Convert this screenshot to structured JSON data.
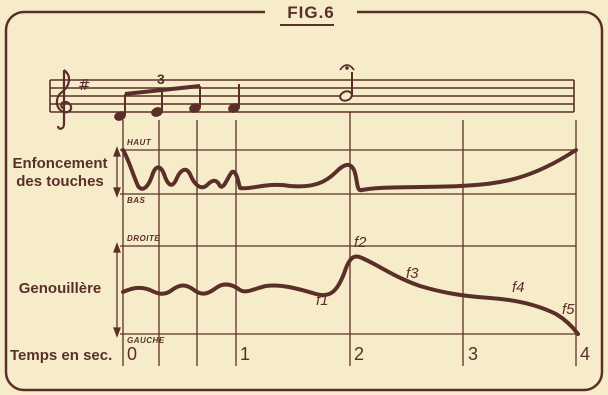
{
  "figure": {
    "title": "FIG.6",
    "row_labels": {
      "key_depression": "Enfoncement\ndes touches",
      "knee_lever": "Genouillère",
      "time": "Temps en sec."
    },
    "key_labels": {
      "top": "HAUT",
      "bottom": "BAS"
    },
    "knee_labels": {
      "top": "DROITE",
      "bottom": "GAUCHE"
    },
    "time_ticks": [
      "0",
      "1",
      "2",
      "3",
      "4"
    ],
    "curve_points": [
      "f1",
      "f2",
      "f3",
      "f4",
      "f5"
    ],
    "tuplet": "3",
    "key_signature": "#",
    "colors": {
      "ink": "#5a2f2a",
      "paper": "#f6ecc9"
    }
  }
}
